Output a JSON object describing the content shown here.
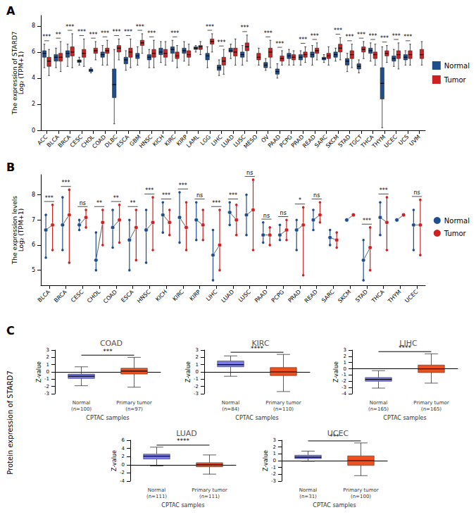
{
  "chart_data": [
    {
      "type": "boxplot",
      "panel": "A",
      "y_label": "The expression of STARD7\nLog₂ (TPM+1)",
      "categories": [
        "ACC",
        "BLCA",
        "BRCA",
        "CESC",
        "CHOL",
        "COAD",
        "DLBC",
        "ESCA",
        "GBM",
        "HNSC",
        "KICH",
        "KIRC",
        "KIRP",
        "LAML",
        "LGG",
        "LIHC",
        "LUAD",
        "LUSC",
        "MESO",
        "OV",
        "PAAD",
        "PCPG",
        "PRAD",
        "READ",
        "SARC",
        "SKCM",
        "STAD",
        "TGCT",
        "THCA",
        "THYM",
        "UCEC",
        "UCS",
        "UVM"
      ],
      "series": [
        {
          "name": "Normal",
          "color": "#1f4e8c",
          "values": [
            [
              4.8,
              5.6,
              5.9,
              6.1,
              6.6
            ],
            [
              4.8,
              5.3,
              5.6,
              5.8,
              6.3
            ],
            [
              4.9,
              5.6,
              5.9,
              6.1,
              6.6
            ],
            [
              5.0,
              5.2,
              5.3,
              5.4,
              5.6
            ],
            [
              4.4,
              4.5,
              4.6,
              4.7,
              4.8
            ],
            [
              5.0,
              5.6,
              5.8,
              6.0,
              6.5
            ],
            [
              0.5,
              2.5,
              3.5,
              4.7,
              6.2
            ],
            [
              4.6,
              5.1,
              5.4,
              5.6,
              6.1
            ],
            [
              5.0,
              5.5,
              5.7,
              5.9,
              6.4
            ],
            [
              4.8,
              5.4,
              5.6,
              5.8,
              6.2
            ],
            [
              5.2,
              5.8,
              6.0,
              6.3,
              6.8
            ],
            [
              5.3,
              5.9,
              6.2,
              6.4,
              6.9
            ],
            [
              5.3,
              5.9,
              6.1,
              6.3,
              6.8
            ],
            [
              6.0,
              6.2,
              6.3,
              6.4,
              6.5
            ],
            [
              4.8,
              5.4,
              5.7,
              5.9,
              6.4
            ],
            [
              4.2,
              4.6,
              4.8,
              5.0,
              5.4
            ],
            [
              5.5,
              6.0,
              6.1,
              6.3,
              6.6
            ],
            [
              5.0,
              5.6,
              5.8,
              6.0,
              6.5
            ],
            null,
            [
              4.6,
              4.8,
              5.0,
              5.2,
              5.5
            ],
            [
              4.0,
              4.3,
              4.5,
              4.7,
              5.1
            ],
            [
              5.0,
              5.5,
              5.7,
              5.9,
              6.2
            ],
            [
              5.0,
              5.4,
              5.6,
              5.8,
              6.1
            ],
            [
              5.0,
              5.6,
              5.8,
              6.0,
              6.5
            ],
            [
              5.2,
              5.4,
              5.5,
              5.6,
              5.8
            ],
            [
              5.3,
              5.6,
              5.8,
              6.0,
              6.3
            ],
            [
              4.5,
              5.0,
              5.3,
              5.5,
              5.9
            ],
            [
              4.4,
              4.7,
              4.9,
              5.1,
              5.4
            ],
            [
              5.3,
              5.9,
              6.1,
              6.3,
              6.7
            ],
            [
              0.2,
              2.4,
              3.6,
              4.8,
              6.4
            ],
            [
              4.9,
              5.3,
              5.5,
              5.7,
              6.2
            ],
            [
              5.0,
              5.4,
              5.6,
              5.8,
              6.1
            ],
            null
          ]
        },
        {
          "name": "Tumor",
          "color": "#cc2222",
          "values": [
            [
              4.2,
              4.9,
              5.3,
              5.6,
              6.2
            ],
            [
              4.5,
              5.3,
              5.6,
              5.9,
              6.8
            ],
            [
              4.8,
              5.7,
              6.0,
              6.4,
              7.4
            ],
            [
              4.9,
              5.6,
              5.9,
              6.2,
              7.0
            ],
            [
              5.4,
              5.9,
              6.1,
              6.3,
              6.8
            ],
            [
              5.0,
              5.9,
              6.1,
              6.3,
              6.9
            ],
            [
              5.4,
              6.0,
              6.3,
              6.5,
              7.0
            ],
            [
              4.8,
              5.6,
              6.0,
              6.3,
              7.0
            ],
            [
              5.9,
              6.5,
              6.7,
              6.9,
              7.4
            ],
            [
              4.8,
              5.6,
              5.9,
              6.2,
              6.9
            ],
            [
              5.0,
              5.6,
              5.9,
              6.2,
              6.8
            ],
            [
              4.8,
              5.5,
              5.7,
              6.0,
              6.5
            ],
            [
              5.0,
              5.6,
              5.8,
              6.1,
              6.6
            ],
            [
              5.8,
              6.2,
              6.4,
              6.5,
              6.8
            ],
            [
              6.0,
              6.6,
              6.8,
              7.0,
              7.4
            ],
            [
              4.3,
              5.0,
              5.3,
              5.6,
              6.2
            ],
            [
              5.0,
              5.7,
              6.0,
              6.3,
              7.0
            ],
            [
              5.3,
              6.1,
              6.4,
              6.7,
              7.3
            ],
            [
              5.0,
              5.4,
              5.6,
              5.9,
              6.3
            ],
            [
              4.8,
              5.6,
              6.0,
              6.3,
              6.9
            ],
            [
              5.0,
              5.3,
              5.5,
              5.7,
              6.1
            ],
            [
              5.0,
              5.4,
              5.6,
              5.8,
              6.1
            ],
            [
              5.2,
              5.6,
              5.8,
              6.0,
              6.4
            ],
            [
              5.4,
              5.9,
              6.1,
              6.3,
              6.7
            ],
            [
              5.0,
              5.5,
              5.7,
              5.9,
              6.4
            ],
            [
              5.4,
              6.0,
              6.3,
              6.6,
              7.1
            ],
            [
              4.8,
              5.5,
              5.8,
              6.1,
              6.6
            ],
            [
              5.5,
              6.0,
              6.2,
              6.4,
              6.8
            ],
            [
              5.0,
              5.5,
              5.8,
              6.0,
              6.6
            ],
            [
              5.2,
              5.7,
              5.9,
              6.1,
              6.5
            ],
            [
              4.7,
              5.5,
              5.8,
              6.1,
              6.7
            ],
            [
              5.0,
              5.5,
              5.8,
              6.1,
              6.6
            ],
            [
              5.0,
              5.5,
              5.8,
              6.2,
              6.8
            ]
          ]
        }
      ],
      "significance": [
        "***",
        "**",
        "***",
        "***",
        "***",
        "***",
        "***",
        "***",
        "***",
        "***",
        null,
        "***",
        null,
        null,
        "***",
        "***",
        null,
        "***",
        null,
        "***",
        "***",
        null,
        "***",
        "***",
        null,
        "***",
        "***",
        "***",
        "***",
        "***",
        "***",
        "***",
        null
      ],
      "ylim": [
        0,
        8.8
      ],
      "yticks": [
        0,
        2,
        4,
        6,
        8
      ],
      "grid": false,
      "legend": "right"
    },
    {
      "type": "paired",
      "panel": "B",
      "y_label": "The expression levels\nLog₂ (TPM+1)",
      "categories": [
        "BLCA",
        "BRCA",
        "CESC",
        "CHOL",
        "COAD",
        "ESCA",
        "HNSC",
        "KICH",
        "KIRC",
        "KIRP",
        "LIHC",
        "LUAD",
        "LUSC",
        "PAAD",
        "PCPG",
        "PRAD",
        "READ",
        "SARC",
        "SKCM",
        "STAD",
        "THCA",
        "THYM",
        "UCEC"
      ],
      "series": [
        {
          "name": "Normal",
          "color": "#1f4e8c",
          "values": [
            [
              5.5,
              6.6,
              7.2
            ],
            [
              5.8,
              6.8,
              7.9
            ],
            [
              6.6,
              6.8,
              7.0
            ],
            [
              5.0,
              5.4,
              6.5
            ],
            [
              5.9,
              6.7,
              7.4
            ],
            [
              5.0,
              6.2,
              7.0
            ],
            [
              5.3,
              6.6,
              7.4
            ],
            [
              6.5,
              7.2,
              7.7
            ],
            [
              6.1,
              7.1,
              8.1
            ],
            [
              6.2,
              7.0,
              7.7
            ],
            [
              4.6,
              5.6,
              6.6
            ],
            [
              6.8,
              7.3,
              7.7
            ],
            [
              6.4,
              7.2,
              8.0
            ],
            [
              6.1,
              6.4,
              6.9
            ],
            [
              6.2,
              6.4,
              6.8
            ],
            [
              5.8,
              6.6,
              7.0
            ],
            [
              6.6,
              7.0,
              7.4
            ],
            [
              6.0,
              6.3,
              6.6
            ],
            [
              7.0,
              7.0,
              7.0
            ],
            [
              4.6,
              5.4,
              6.2
            ],
            [
              6.4,
              7.1,
              7.7
            ],
            [
              7.0,
              7.0,
              7.0
            ],
            [
              5.8,
              6.8,
              7.4
            ]
          ]
        },
        {
          "name": "Tumor",
          "color": "#cc2222",
          "values": [
            [
              5.8,
              6.8,
              7.6
            ],
            [
              5.3,
              7.2,
              8.2
            ],
            [
              6.7,
              7.1,
              7.4
            ],
            [
              6.0,
              6.9,
              7.4
            ],
            [
              6.1,
              7.0,
              7.6
            ],
            [
              5.4,
              6.7,
              7.4
            ],
            [
              5.8,
              6.9,
              7.9
            ],
            [
              6.4,
              6.9,
              7.4
            ],
            [
              5.8,
              6.7,
              7.7
            ],
            [
              6.2,
              6.8,
              7.4
            ],
            [
              5.0,
              6.0,
              7.4
            ],
            [
              6.4,
              7.0,
              7.6
            ],
            [
              5.8,
              7.4,
              8.6
            ],
            [
              6.0,
              6.4,
              6.7
            ],
            [
              6.2,
              6.6,
              7.0
            ],
            [
              4.8,
              6.8,
              7.5
            ],
            [
              6.9,
              7.2,
              7.7
            ],
            [
              5.9,
              6.2,
              6.5
            ],
            [
              7.2,
              7.2,
              7.2
            ],
            [
              5.0,
              5.9,
              6.7
            ],
            [
              5.8,
              6.9,
              7.9
            ],
            [
              7.2,
              7.2,
              7.2
            ],
            [
              5.6,
              6.8,
              7.8
            ]
          ]
        }
      ],
      "significance": [
        "***",
        "***",
        "ns",
        "**",
        "**",
        "**",
        "***",
        "***",
        "***",
        "ns",
        "***",
        "***",
        "ns",
        "ns",
        "ns",
        "*",
        "ns",
        null,
        null,
        "***",
        "***",
        null,
        "ns"
      ],
      "ylim": [
        4.4,
        8.8
      ],
      "yticks": [
        5,
        6,
        7,
        8
      ],
      "grid": false,
      "legend": "right"
    },
    {
      "type": "boxplot",
      "panel": "C",
      "group_y_label": "Protein expression of STARD7",
      "title": "COAD",
      "y_label": "Z-value",
      "x_label": "CPTAC samples",
      "categories": [
        "Normal\n(n=100)",
        "Primary tumor\n(n=97)"
      ],
      "values": [
        [
          -1.9,
          -0.9,
          -0.6,
          -0.3,
          0.7
        ],
        [
          -2.1,
          -0.3,
          0.1,
          0.5,
          2.0
        ]
      ],
      "colors": [
        "#7b7bee",
        "#f0501e"
      ],
      "significance": "***",
      "ylim": [
        -3,
        3
      ],
      "yticks": [
        -3,
        -2,
        -1,
        0,
        1,
        2,
        3
      ],
      "grid": false
    },
    {
      "type": "boxplot",
      "title": "KIRC",
      "y_label": "Z-value",
      "x_label": "CPTAC samples",
      "categories": [
        "Normal\n(n=84)",
        "Primary tumor\n(n=110)"
      ],
      "values": [
        [
          -0.6,
          0.7,
          1.0,
          1.5,
          2.2
        ],
        [
          -2.7,
          -0.5,
          0.0,
          0.6,
          2.4
        ]
      ],
      "colors": [
        "#7b7bee",
        "#f0501e"
      ],
      "significance": "****",
      "ylim": [
        -3,
        3
      ],
      "yticks": [
        -3,
        -2,
        -1,
        0,
        1,
        2,
        3
      ],
      "grid": false
    },
    {
      "type": "boxplot",
      "title": "LIHC",
      "y_label": "Z-value",
      "x_label": "CPTAC samples",
      "categories": [
        "Normal\n(n=165)",
        "Primary tumor\n(n=165)"
      ],
      "values": [
        [
          -3.1,
          -2.0,
          -1.7,
          -1.4,
          -0.3
        ],
        [
          -2.3,
          -0.6,
          0.0,
          0.6,
          2.4
        ]
      ],
      "colors": [
        "#7b7bee",
        "#f0501e"
      ],
      "significance": "****",
      "ylim": [
        -4,
        3
      ],
      "yticks": [
        -4,
        -3,
        -2,
        -1,
        0,
        1,
        2,
        3
      ],
      "grid": false
    },
    {
      "type": "boxplot",
      "title": "LUAD",
      "y_label": "Z-value",
      "x_label": "CPTAC samples",
      "categories": [
        "Normal\n(n=111)",
        "Primary tumor\n(n=111)"
      ],
      "values": [
        [
          -0.3,
          1.4,
          2.1,
          2.6,
          4.3
        ],
        [
          -2.3,
          -0.5,
          0.0,
          0.5,
          2.4
        ]
      ],
      "colors": [
        "#7b7bee",
        "#f0501e"
      ],
      "significance": "****",
      "ylim": [
        -4,
        6
      ],
      "yticks": [
        -4,
        -2,
        0,
        2,
        4,
        6
      ],
      "grid": false
    },
    {
      "type": "boxplot",
      "title": "UCEC",
      "y_label": "Z-value",
      "x_label": "CPTAC samples",
      "categories": [
        "Normal\n(n=31)",
        "Primary tumor\n(n=100)"
      ],
      "values": [
        [
          -0.1,
          0.3,
          0.5,
          0.8,
          1.4
        ],
        [
          -2.2,
          -0.7,
          0.0,
          0.7,
          2.6
        ]
      ],
      "colors": [
        "#7b7bee",
        "#f0501e"
      ],
      "significance": "***",
      "ylim": [
        -3,
        3
      ],
      "yticks": [
        -3,
        -2,
        -1,
        0,
        1,
        2,
        3
      ],
      "grid": false
    }
  ]
}
